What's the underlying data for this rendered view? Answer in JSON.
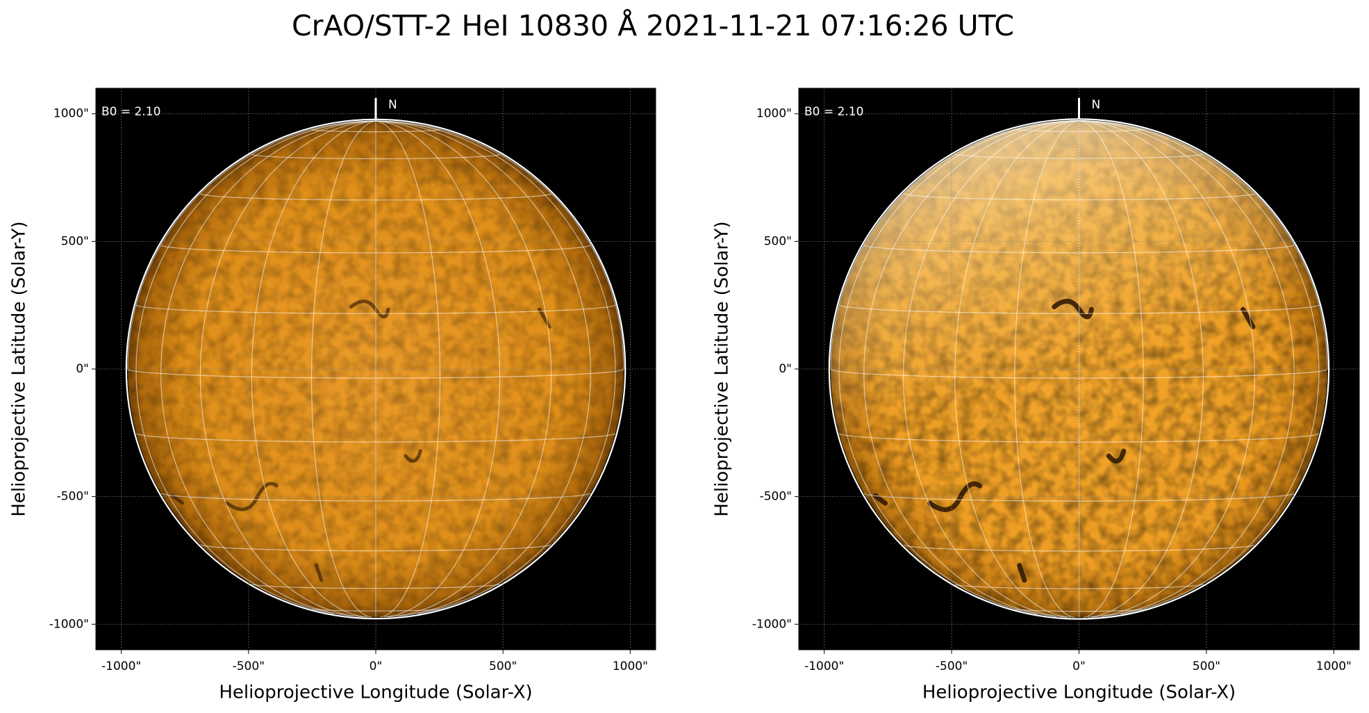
{
  "title": "CrAO/STT-2 HeI 10830 Å 2021-11-21 07:16:26 UTC",
  "chart_data": [
    {
      "type": "image",
      "xlabel": "Helioprojective Longitude (Solar-X)",
      "ylabel": "Helioprojective Latitude (Solar-Y)",
      "xlim": [
        -1100,
        1100
      ],
      "ylim": [
        -1100,
        1100
      ],
      "xticks": [
        {
          "value": -1000,
          "label": "-1000\""
        },
        {
          "value": -500,
          "label": "-500\""
        },
        {
          "value": 0,
          "label": "0\""
        },
        {
          "value": 500,
          "label": "500\""
        },
        {
          "value": 1000,
          "label": "1000\""
        }
      ],
      "yticks": [
        {
          "value": -1000,
          "label": "-1000\""
        },
        {
          "value": -500,
          "label": "-500\""
        },
        {
          "value": 0,
          "label": "0\""
        },
        {
          "value": 500,
          "label": "500\""
        },
        {
          "value": 1000,
          "label": "1000\""
        }
      ],
      "annotation": "B0 = 2.10",
      "north_label": "N",
      "b0": 2.1,
      "solar_radius": 975,
      "graticule_step": 15,
      "color": "#e0901a",
      "grid": true
    },
    {
      "type": "image",
      "xlabel": "Helioprojective Longitude (Solar-X)",
      "ylabel": "Helioprojective Latitude (Solar-Y)",
      "xlim": [
        -1100,
        1100
      ],
      "ylim": [
        -1100,
        1100
      ],
      "xticks": [
        {
          "value": -1000,
          "label": "-1000\""
        },
        {
          "value": -500,
          "label": "-500\""
        },
        {
          "value": 0,
          "label": "0\""
        },
        {
          "value": 500,
          "label": "500\""
        },
        {
          "value": 1000,
          "label": "1000\""
        }
      ],
      "yticks": [
        {
          "value": -1000,
          "label": "-1000\""
        },
        {
          "value": -500,
          "label": "-500\""
        },
        {
          "value": 0,
          "label": "0\""
        },
        {
          "value": 500,
          "label": "500\""
        },
        {
          "value": 1000,
          "label": "1000\""
        }
      ],
      "annotation": "B0 = 2.10",
      "north_label": "N",
      "b0": 2.1,
      "solar_radius": 975,
      "graticule_step": 15,
      "color": "#f0a228",
      "grid": true
    }
  ]
}
